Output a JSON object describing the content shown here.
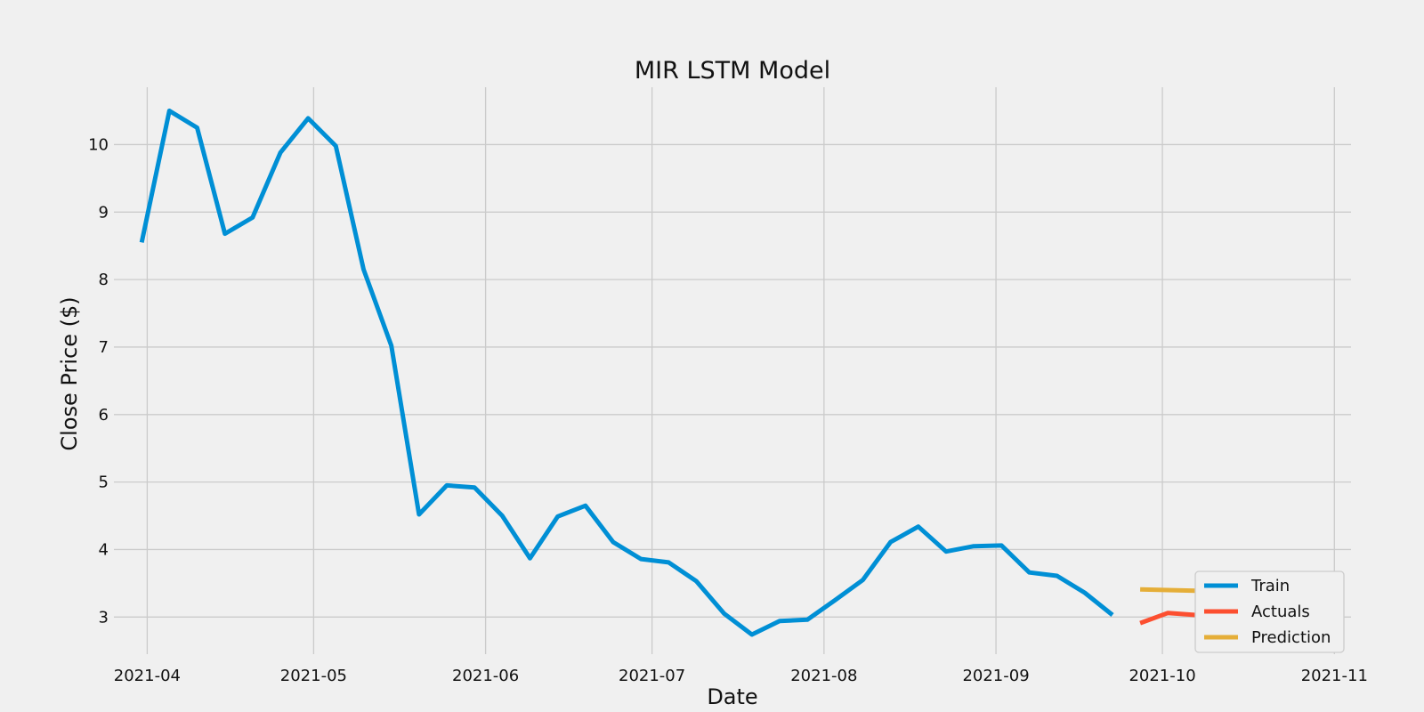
{
  "chart_data": {
    "type": "line",
    "title": "MIR LSTM Model",
    "xlabel": "Date",
    "ylabel": "Close Price ($)",
    "x_ticks": [
      "2021-04",
      "2021-05",
      "2021-06",
      "2021-07",
      "2021-08",
      "2021-09",
      "2021-10",
      "2021-11"
    ],
    "y_ticks": [
      3,
      4,
      5,
      6,
      7,
      8,
      9,
      10
    ],
    "xlim": [
      "2021-03-26",
      "2021-11-04"
    ],
    "ylim": [
      2.45,
      10.85
    ],
    "grid": true,
    "legend_position": "bottom-right",
    "series": [
      {
        "name": "Train",
        "color": "#008fd5",
        "x": [
          "2021-03-31",
          "2021-04-05",
          "2021-04-10",
          "2021-04-15",
          "2021-04-20",
          "2021-04-25",
          "2021-04-30",
          "2021-05-05",
          "2021-05-10",
          "2021-05-15",
          "2021-05-20",
          "2021-05-25",
          "2021-05-30",
          "2021-06-04",
          "2021-06-09",
          "2021-06-14",
          "2021-06-19",
          "2021-06-24",
          "2021-06-29",
          "2021-07-04",
          "2021-07-09",
          "2021-07-14",
          "2021-07-19",
          "2021-07-24",
          "2021-07-29",
          "2021-08-03",
          "2021-08-08",
          "2021-08-13",
          "2021-08-18",
          "2021-08-23",
          "2021-08-28",
          "2021-09-02",
          "2021-09-07",
          "2021-09-12",
          "2021-09-17",
          "2021-09-22"
        ],
        "y": [
          8.55,
          10.5,
          10.25,
          8.68,
          8.92,
          9.88,
          10.39,
          9.98,
          8.15,
          7.02,
          4.52,
          4.95,
          4.92,
          4.5,
          3.87,
          4.49,
          4.65,
          4.11,
          3.86,
          3.81,
          3.53,
          3.05,
          2.74,
          2.94,
          2.96,
          3.25,
          3.55,
          4.11,
          4.34,
          3.97,
          4.05,
          4.06,
          3.66,
          3.61,
          3.36,
          3.03
        ]
      },
      {
        "name": "Actuals",
        "color": "#fc4f30",
        "x": [
          "2021-09-27",
          "2021-10-02",
          "2021-10-07",
          "2021-10-12",
          "2021-10-17",
          "2021-10-22",
          "2021-10-27",
          "2021-11-01"
        ],
        "y": [
          2.91,
          3.06,
          3.03,
          2.97,
          3.03,
          2.98,
          3.05,
          3.36
        ]
      },
      {
        "name": "Prediction",
        "color": "#e5ae38",
        "x": [
          "2021-09-27",
          "2021-10-02",
          "2021-10-07",
          "2021-10-12",
          "2021-10-17",
          "2021-10-22",
          "2021-10-27",
          "2021-11-01"
        ],
        "y": [
          3.41,
          3.4,
          3.39,
          3.37,
          3.35,
          3.33,
          3.32,
          3.31
        ]
      }
    ]
  }
}
